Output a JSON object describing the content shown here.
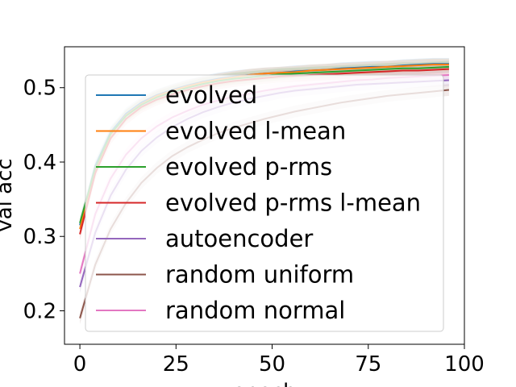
{
  "chart_data": {
    "type": "line",
    "title": "",
    "xlabel": "epoch",
    "ylabel": "val acc",
    "xlim": [
      -4,
      100
    ],
    "ylim": [
      0.155,
      0.555
    ],
    "xticks": [
      0,
      25,
      50,
      75,
      100
    ],
    "xtick_labels": [
      "0",
      "25",
      "50",
      "75",
      "100"
    ],
    "yticks": [
      0.2,
      0.3,
      0.4,
      0.5
    ],
    "ytick_labels": [
      "0.2",
      "0.3",
      "0.4",
      "0.5"
    ],
    "grid": false,
    "legend_position": "center",
    "x": [
      0,
      4,
      8,
      12,
      16,
      20,
      24,
      28,
      32,
      36,
      40,
      44,
      48,
      52,
      56,
      60,
      64,
      68,
      72,
      76,
      80,
      84,
      88,
      92,
      96
    ],
    "series": [
      {
        "name": "evolved",
        "color": "#1f77b4",
        "values": [
          0.315,
          0.395,
          0.44,
          0.465,
          0.48,
          0.49,
          0.497,
          0.503,
          0.508,
          0.512,
          0.515,
          0.517,
          0.519,
          0.52,
          0.522,
          0.523,
          0.524,
          0.526,
          0.527,
          0.528,
          0.528,
          0.53,
          0.531,
          0.532,
          0.532
        ]
      },
      {
        "name": "evolved l-mean",
        "color": "#ff7f0e",
        "values": [
          0.31,
          0.39,
          0.437,
          0.463,
          0.478,
          0.489,
          0.496,
          0.502,
          0.507,
          0.511,
          0.514,
          0.517,
          0.519,
          0.52,
          0.521,
          0.523,
          0.524,
          0.525,
          0.526,
          0.527,
          0.528,
          0.529,
          0.53,
          0.531,
          0.531
        ]
      },
      {
        "name": "evolved p-rms",
        "color": "#2ca02c",
        "values": [
          0.318,
          0.392,
          0.438,
          0.462,
          0.477,
          0.487,
          0.494,
          0.5,
          0.505,
          0.509,
          0.512,
          0.514,
          0.516,
          0.518,
          0.519,
          0.52,
          0.521,
          0.522,
          0.523,
          0.524,
          0.525,
          0.526,
          0.526,
          0.527,
          0.528
        ]
      },
      {
        "name": "evolved p-rms l-mean",
        "color": "#d62728",
        "values": [
          0.303,
          0.385,
          0.432,
          0.458,
          0.474,
          0.484,
          0.491,
          0.497,
          0.502,
          0.506,
          0.509,
          0.511,
          0.513,
          0.515,
          0.516,
          0.517,
          0.518,
          0.519,
          0.52,
          0.521,
          0.522,
          0.523,
          0.523,
          0.524,
          0.525
        ]
      },
      {
        "name": "autoencoder",
        "color": "#9467bd",
        "values": [
          0.232,
          0.305,
          0.355,
          0.39,
          0.415,
          0.433,
          0.447,
          0.458,
          0.467,
          0.474,
          0.48,
          0.485,
          0.489,
          0.493,
          0.496,
          0.498,
          0.5,
          0.502,
          0.504,
          0.505,
          0.506,
          0.507,
          0.508,
          0.509,
          0.51
        ]
      },
      {
        "name": "random uniform",
        "color": "#8c564b",
        "values": [
          0.19,
          0.262,
          0.31,
          0.345,
          0.372,
          0.392,
          0.408,
          0.42,
          0.43,
          0.439,
          0.446,
          0.452,
          0.458,
          0.463,
          0.468,
          0.472,
          0.476,
          0.48,
          0.483,
          0.486,
          0.489,
          0.491,
          0.493,
          0.495,
          0.497
        ]
      },
      {
        "name": "random normal",
        "color": "#e377c2",
        "values": [
          0.25,
          0.33,
          0.378,
          0.41,
          0.432,
          0.448,
          0.46,
          0.469,
          0.477,
          0.483,
          0.488,
          0.492,
          0.496,
          0.499,
          0.502,
          0.504,
          0.506,
          0.508,
          0.51,
          0.511,
          0.513,
          0.514,
          0.515,
          0.516,
          0.517
        ]
      }
    ]
  }
}
